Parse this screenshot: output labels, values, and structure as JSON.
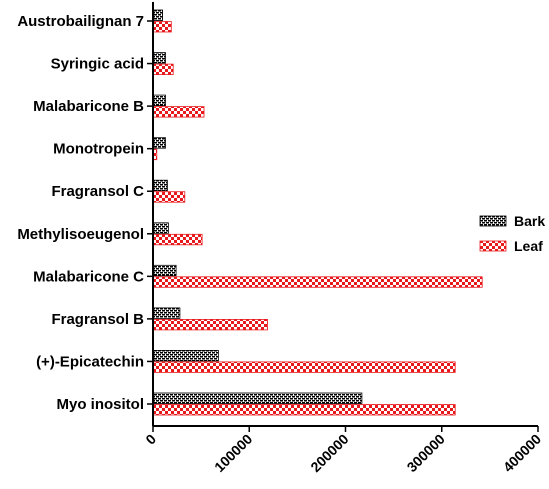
{
  "chart_data": {
    "type": "bar",
    "orientation": "horizontal",
    "title": "",
    "xlabel": "",
    "ylabel": "",
    "xlim": [
      0,
      400000
    ],
    "x_ticks": [
      0,
      100000,
      200000,
      300000,
      400000
    ],
    "x_tick_labels": [
      "0",
      "100000",
      "200000",
      "300000",
      "400000"
    ],
    "grid": false,
    "legend_position": "right",
    "categories": [
      "Austrobailignan 7",
      "Syringic acid",
      "Malabaricone B",
      "Monotropein",
      "Fragransol C",
      "Methylisoeugenol",
      "Malabaricone C",
      "Fragransol B",
      "(+)-Epicatechin",
      "Myo inositol"
    ],
    "series": [
      {
        "name": "Bark",
        "pattern": "black-brick",
        "values": [
          10000,
          13000,
          13000,
          13000,
          15000,
          16000,
          24000,
          28000,
          68000,
          217000
        ]
      },
      {
        "name": "Leaf",
        "pattern": "red-checker",
        "values": [
          19000,
          21000,
          53000,
          4000,
          33000,
          51000,
          342000,
          119000,
          314000,
          314000
        ]
      }
    ]
  },
  "colors": {
    "bark": "#000000",
    "leaf": "#e8191c",
    "axis": "#000000"
  }
}
